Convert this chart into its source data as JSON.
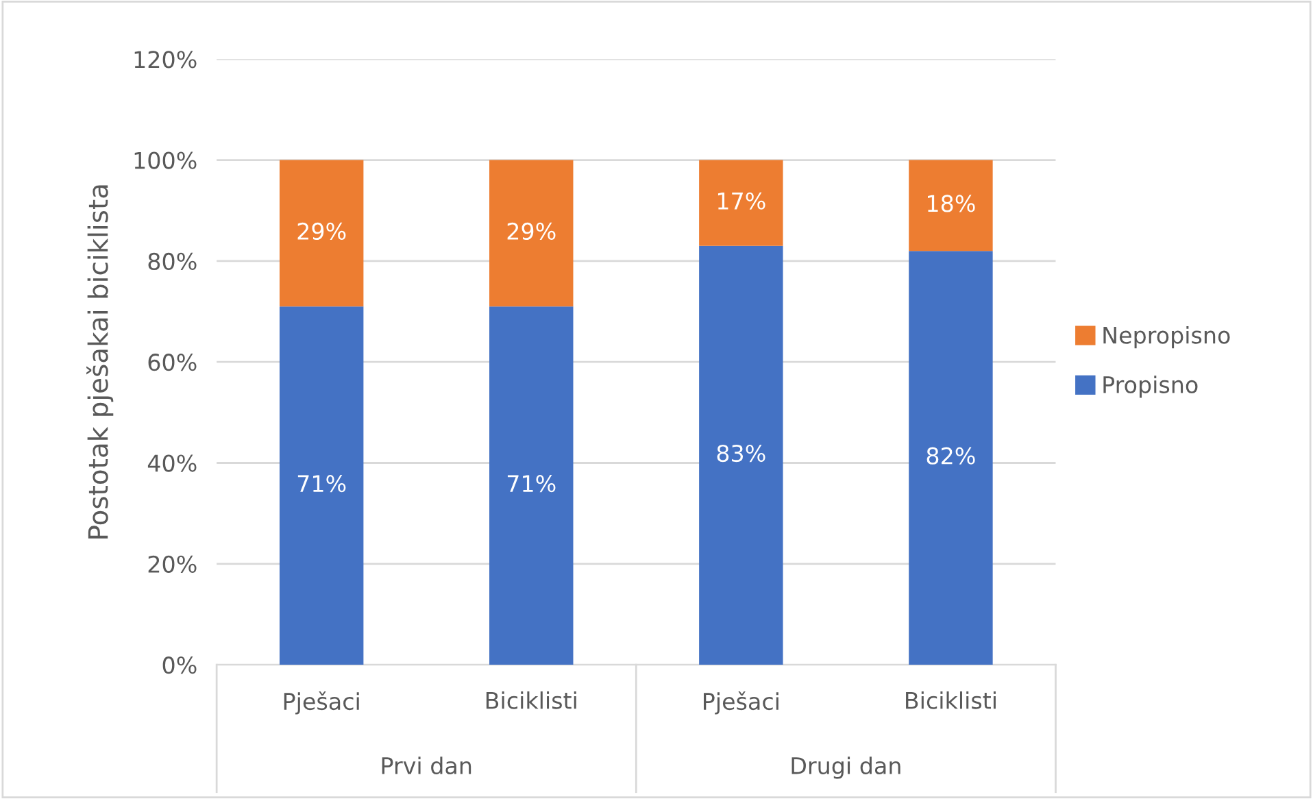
{
  "chart_data": {
    "type": "bar",
    "stacked": true,
    "ylabel": "Postotak pješakai biciklista",
    "categories": [
      "Pješaci",
      "Biciklisti",
      "Pješaci",
      "Biciklisti"
    ],
    "annotations": [
      "Prvi dan",
      "Drugi dan"
    ],
    "series": [
      {
        "name": "Propisno",
        "color": "#4472c4",
        "values": [
          71,
          71,
          83,
          82
        ],
        "value_labels": [
          "71%",
          "71%",
          "83%",
          "82%"
        ]
      },
      {
        "name": "Nepropisno",
        "color": "#ed7d31",
        "values": [
          29,
          29,
          17,
          18
        ],
        "value_labels": [
          "29%",
          "29%",
          "17%",
          "18%"
        ]
      }
    ],
    "ylim": [
      0,
      120
    ],
    "yticks": [
      {
        "value": 0,
        "label": "0%"
      },
      {
        "value": 20,
        "label": "20%"
      },
      {
        "value": 40,
        "label": "40%"
      },
      {
        "value": 60,
        "label": "60%"
      },
      {
        "value": 80,
        "label": "80%"
      },
      {
        "value": 100,
        "label": "100%"
      },
      {
        "value": 120,
        "label": "120%"
      }
    ],
    "grid": "y",
    "legend": "right"
  }
}
